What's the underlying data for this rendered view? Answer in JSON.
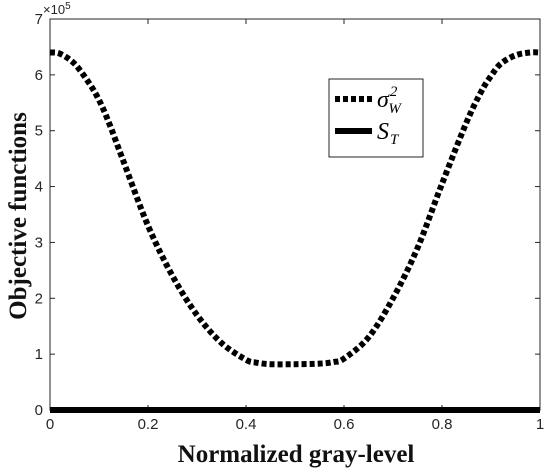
{
  "chart_data": {
    "type": "line",
    "title": "",
    "xlabel": "Normalized gray-level",
    "ylabel": "Objective functions",
    "xlim": [
      0,
      1
    ],
    "ylim": [
      0,
      7
    ],
    "y_exponent_label": "×10",
    "y_exponent_power": "5",
    "xticks": [
      "0",
      "0.2",
      "0.4",
      "0.6",
      "0.8",
      "1"
    ],
    "yticks": [
      "0",
      "1",
      "2",
      "3",
      "4",
      "5",
      "6",
      "7"
    ],
    "grid": false,
    "legend_position": "top-right",
    "series": [
      {
        "legend_symbol": "σ",
        "legend_superscript": "2",
        "legend_subscript": "W",
        "style": "dotted",
        "color": "#000000",
        "x": [
          0.0,
          0.02,
          0.05,
          0.08,
          0.1,
          0.12,
          0.15,
          0.2,
          0.25,
          0.3,
          0.35,
          0.4,
          0.42,
          0.45,
          0.5,
          0.55,
          0.58,
          0.6,
          0.65,
          0.7,
          0.75,
          0.8,
          0.85,
          0.88,
          0.9,
          0.92,
          0.95,
          0.98,
          1.0
        ],
        "y": [
          6.4,
          6.38,
          6.2,
          5.85,
          5.55,
          5.15,
          4.45,
          3.3,
          2.4,
          1.7,
          1.2,
          0.9,
          0.85,
          0.82,
          0.82,
          0.83,
          0.86,
          0.92,
          1.3,
          2.0,
          2.9,
          4.05,
          5.15,
          5.7,
          5.98,
          6.2,
          6.35,
          6.4,
          6.4
        ]
      },
      {
        "legend_symbol": "S",
        "legend_subscript": "T",
        "style": "solid",
        "color": "#000000",
        "x": [
          0.0,
          1.0
        ],
        "y": [
          0.0,
          0.0
        ]
      }
    ]
  }
}
